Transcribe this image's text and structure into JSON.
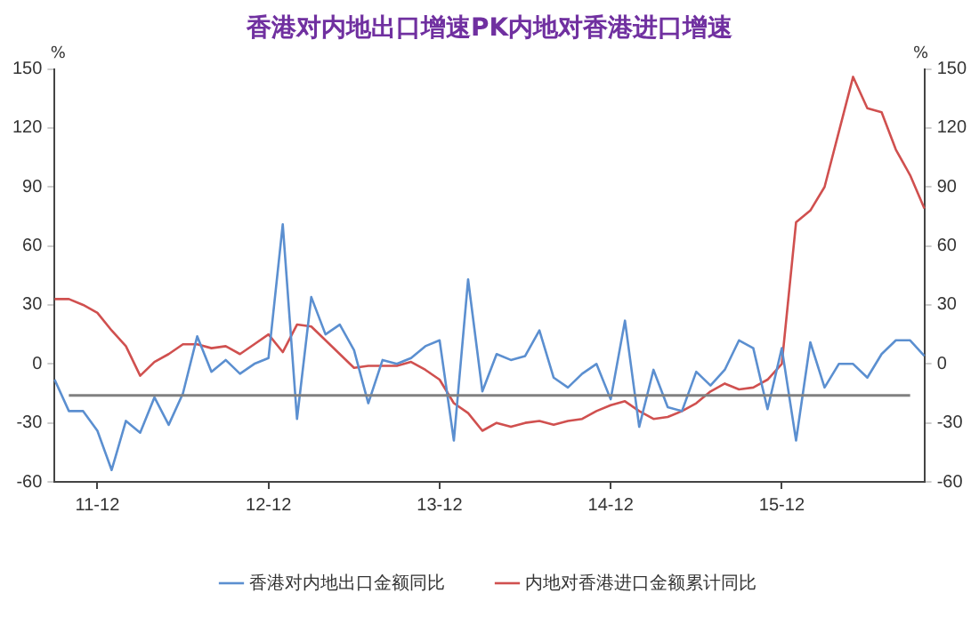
{
  "chart_data": {
    "type": "line",
    "title": "香港对内地出口增速PK内地对香港进口增速",
    "ylabel": "%",
    "y2label": "%",
    "categories": [
      null,
      null,
      null,
      "11-12",
      null,
      null,
      null,
      null,
      null,
      null,
      null,
      null,
      null,
      null,
      null,
      "12-12",
      null,
      null,
      null,
      null,
      null,
      null,
      null,
      null,
      null,
      null,
      null,
      "13-12",
      null,
      null,
      null,
      null,
      null,
      null,
      null,
      null,
      null,
      null,
      null,
      "14-12",
      null,
      null,
      null,
      null,
      null,
      null,
      null,
      null,
      null,
      null,
      null,
      "15-12",
      null,
      null,
      null,
      null,
      null,
      null,
      null,
      null,
      null,
      null
    ],
    "series": [
      {
        "name": "香港对内地出口金额同比",
        "color": "#5b8fd0",
        "values": [
          -8,
          -24,
          -24,
          -34,
          -54,
          -29,
          -35,
          -17,
          -31,
          -15,
          14,
          -4,
          2,
          -5,
          0,
          3,
          71,
          -28,
          34,
          15,
          20,
          7,
          -20,
          2,
          0,
          3,
          9,
          12,
          -39,
          43,
          -14,
          5,
          2,
          4,
          17,
          -7,
          -12,
          -5,
          0,
          -18,
          22,
          -32,
          -3,
          -22,
          -24,
          -4,
          -11,
          -3,
          12,
          8,
          -23,
          8,
          -39,
          11,
          -12,
          0,
          0,
          -7,
          5,
          12,
          12,
          4
        ]
      },
      {
        "name": "内地对香港进口金额累计同比",
        "color": "#d0504f",
        "values": [
          33,
          33,
          30,
          26,
          17,
          9,
          -6,
          1,
          5,
          10,
          10,
          8,
          9,
          5,
          10,
          15,
          6,
          20,
          19,
          12,
          5,
          -2,
          -1,
          -1,
          -1,
          1,
          -3,
          -8,
          -20,
          -25,
          -34,
          -30,
          -32,
          -30,
          -29,
          -31,
          -29,
          -28,
          -24,
          -21,
          -19,
          -24,
          -28,
          -27,
          -24,
          -20,
          -14,
          -10,
          -13,
          -12,
          -8,
          0,
          72,
          78,
          90,
          118,
          146,
          130,
          128,
          109,
          96,
          79
        ]
      }
    ],
    "ylim": [
      -60,
      150
    ],
    "yticks": [
      -60,
      -30,
      0,
      30,
      60,
      90,
      120,
      150
    ],
    "y2lim": [
      -60,
      150
    ],
    "y2ticks": [
      -60,
      -30,
      0,
      30,
      60,
      90,
      120,
      150
    ],
    "ref_lines": [
      {
        "axis": "y",
        "value": -16,
        "color": "#808080"
      }
    ],
    "grid": false,
    "legend": "bottom",
    "marker": "none",
    "line_style": "solid"
  }
}
